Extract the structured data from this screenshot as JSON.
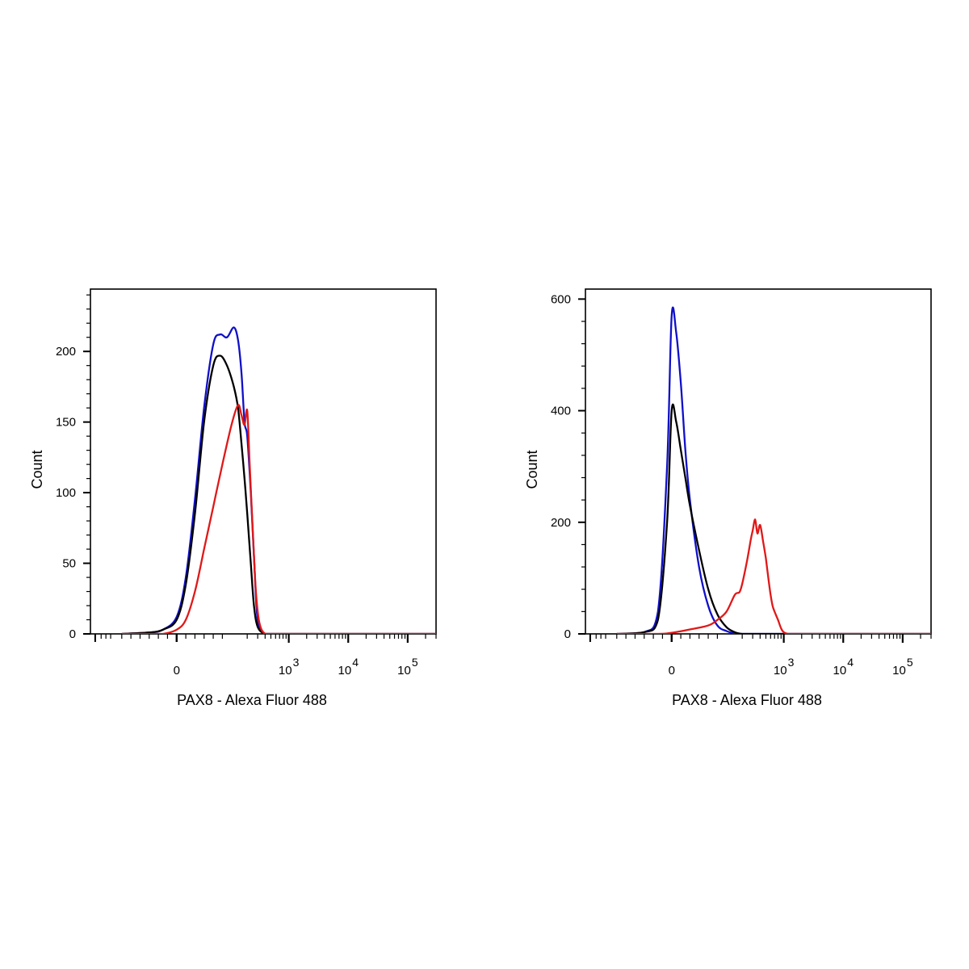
{
  "chart_data": [
    {
      "type": "line",
      "xlabel": "PAX8 - Alexa Fluor 488",
      "ylabel": "Count",
      "x_scale": "biexponential",
      "x_tick_labels": [
        {
          "base": "0",
          "exp": ""
        },
        {
          "base": "10",
          "exp": "3"
        },
        {
          "base": "10",
          "exp": "4"
        },
        {
          "base": "10",
          "exp": "5"
        }
      ],
      "ylim": [
        0,
        243
      ],
      "y_ticks": [
        0,
        50,
        100,
        150,
        200
      ],
      "grid": false,
      "series": [
        {
          "color": "#1010c8",
          "x": [
            -120,
            -60,
            -30,
            0,
            20,
            40,
            60,
            80,
            95,
            110,
            125,
            140,
            160,
            180,
            200,
            230,
            260,
            300,
            400,
            600,
            1000,
            10000,
            100000,
            300000
          ],
          "y": [
            0,
            1,
            3,
            12,
            40,
            95,
            160,
            205,
            212,
            210,
            217,
            208,
            185,
            150,
            140,
            100,
            55,
            10,
            0,
            0,
            0,
            0,
            0,
            0
          ]
        },
        {
          "color": "#000000",
          "x": [
            -120,
            -60,
            -30,
            0,
            20,
            40,
            60,
            80,
            95,
            110,
            125,
            140,
            160,
            180,
            200,
            230,
            260,
            300,
            400,
            600,
            1000,
            10000,
            100000,
            300000
          ],
          "y": [
            0,
            1,
            3,
            10,
            35,
            85,
            150,
            190,
            197,
            190,
            175,
            160,
            135,
            110,
            85,
            50,
            20,
            5,
            0,
            0,
            0,
            0,
            0,
            0
          ]
        },
        {
          "color": "#e01818",
          "x": [
            -120,
            -60,
            -30,
            0,
            20,
            40,
            60,
            80,
            100,
            120,
            140,
            160,
            180,
            200,
            220,
            250,
            280,
            320,
            400,
            600,
            1000,
            10000,
            100000,
            300000
          ],
          "y": [
            0,
            0,
            0,
            3,
            10,
            30,
            60,
            90,
            120,
            148,
            162,
            155,
            148,
            158,
            120,
            70,
            30,
            8,
            0,
            0,
            0,
            0,
            0,
            0
          ]
        }
      ]
    },
    {
      "type": "line",
      "xlabel": "PAX8 - Alexa Fluor 488",
      "ylabel": "Count",
      "x_scale": "biexponential",
      "x_tick_labels": [
        {
          "base": "0",
          "exp": ""
        },
        {
          "base": "10",
          "exp": "3"
        },
        {
          "base": "10",
          "exp": "4"
        },
        {
          "base": "10",
          "exp": "5"
        }
      ],
      "ylim": [
        0,
        615
      ],
      "y_ticks": [
        0,
        200,
        400,
        600
      ],
      "grid": false,
      "series": [
        {
          "color": "#1010c8",
          "x": [
            -120,
            -60,
            -30,
            -10,
            0,
            10,
            20,
            30,
            40,
            60,
            80,
            100,
            120,
            150,
            200,
            300,
            1000,
            10000,
            100000,
            300000
          ],
          "y": [
            0,
            3,
            40,
            300,
            570,
            540,
            450,
            330,
            240,
            120,
            50,
            15,
            5,
            1,
            0,
            0,
            0,
            0,
            0,
            0
          ]
        },
        {
          "color": "#000000",
          "x": [
            -120,
            -60,
            -30,
            -10,
            0,
            10,
            20,
            30,
            40,
            60,
            80,
            100,
            120,
            150,
            200,
            300,
            1000,
            10000,
            100000,
            300000
          ],
          "y": [
            0,
            3,
            25,
            200,
            400,
            380,
            330,
            280,
            230,
            150,
            80,
            35,
            12,
            3,
            0,
            0,
            0,
            0,
            0,
            0
          ]
        },
        {
          "color": "#e01818",
          "x": [
            -120,
            -30,
            0,
            40,
            80,
            100,
            120,
            150,
            180,
            200,
            240,
            280,
            300,
            330,
            360,
            400,
            450,
            500,
            550,
            600,
            650,
            700,
            800,
            900,
            1000,
            1200,
            1500,
            3000,
            100000,
            300000
          ],
          "y": [
            0,
            0,
            2,
            8,
            15,
            25,
            40,
            70,
            75,
            90,
            130,
            170,
            185,
            205,
            180,
            195,
            165,
            135,
            100,
            70,
            50,
            40,
            25,
            10,
            3,
            0,
            0,
            0,
            0,
            0
          ]
        }
      ]
    }
  ]
}
